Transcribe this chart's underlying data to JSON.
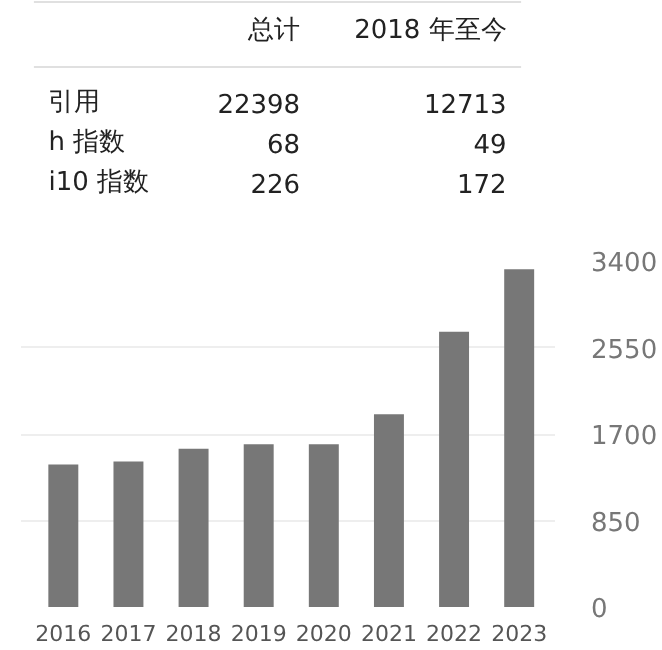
{
  "chart_data": [
    {
      "type": "other",
      "categories": [
        "总计",
        "2018 年至今"
      ],
      "annotations": [
        "引用",
        "22398",
        "12713",
        "h 指数",
        "68",
        "49",
        "i10 指数",
        "226",
        "172"
      ]
    },
    {
      "type": "bar",
      "categories": [
        "2016",
        "2017",
        "2018",
        "2019",
        "2020",
        "2021",
        "2022",
        "2023"
      ],
      "values": [
        1400,
        1430,
        1555,
        1600,
        1600,
        1895,
        2705,
        3320
      ],
      "color": "#777777",
      "ylim": [
        0,
        3400
      ],
      "yticks": [
        0,
        850,
        1700,
        2550,
        3400
      ],
      "grid": "y"
    }
  ]
}
